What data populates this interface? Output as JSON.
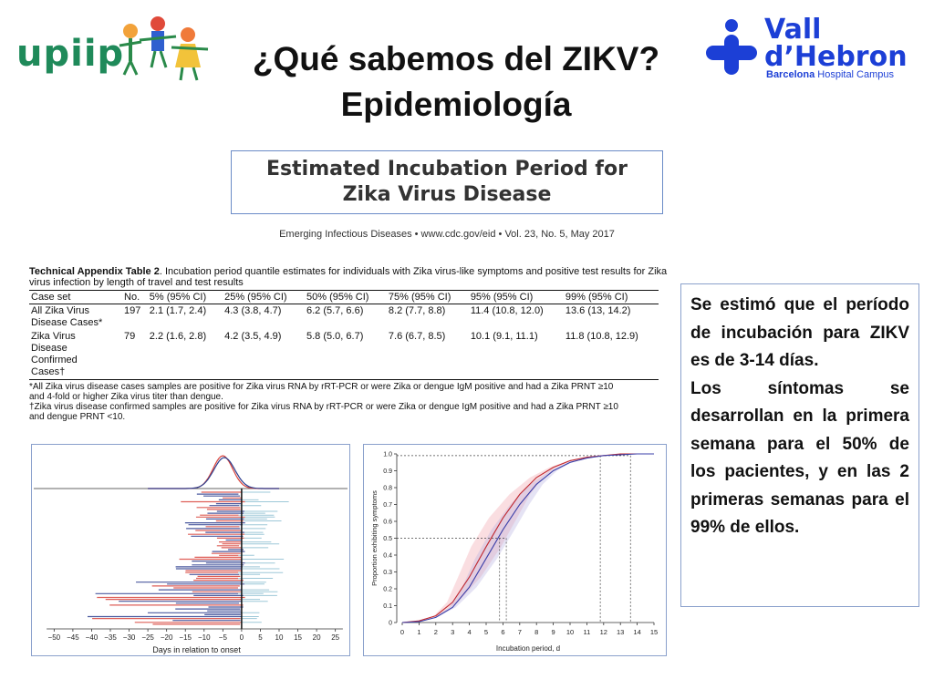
{
  "slide": {
    "title_line1": "¿Qué sabemos del ZIKV?",
    "title_line2": "Epidemiología"
  },
  "logos": {
    "left_text": "upiip",
    "right_title_line1": "Vall",
    "right_title_line2": "d’Hebron",
    "right_sub_bold": "Barcelona",
    "right_sub_rest": " Hospital Campus"
  },
  "article": {
    "title_line1": "Estimated Incubation Period for",
    "title_line2": "Zika Virus Disease",
    "journal": "Emerging Infectious Diseases • www.cdc.gov/eid • Vol. 23, No. 5, May 2017"
  },
  "table": {
    "caption_bold": "Technical Appendix Table 2",
    "caption_rest": ". Incubation period quantile estimates for individuals with Zika virus-like symptoms and positive test results for Zika virus infection by length of travel and test results",
    "headers": [
      "Case set",
      "No.",
      "5% (95% CI)",
      "25% (95% CI)",
      "50% (95% CI)",
      "75% (95% CI)",
      "95% (95% CI)",
      "99% (95% CI)"
    ],
    "row1": {
      "case_line1": "All Zika Virus",
      "case_line2": "Disease Cases*",
      "no": "197",
      "p5": "2.1 (1.7, 2.4)",
      "p25": "4.3 (3.8, 4.7)",
      "p50": "6.2 (5.7, 6.6)",
      "p75": "8.2 (7.7, 8.8)",
      "p95": "11.4 (10.8, 12.0)",
      "p99": "13.6 (13, 14.2)"
    },
    "row2": {
      "case_line1": "Zika Virus",
      "case_line2": "Disease",
      "case_line3": "Confirmed",
      "case_line4": "Cases†",
      "no": "79",
      "p5": "2.2 (1.6, 2.8)",
      "p25": "4.2 (3.5, 4.9)",
      "p50": "5.8 (5.0, 6.7)",
      "p75": "7.6 (6.7, 8.5)",
      "p95": "10.1 (9.1, 11.1)",
      "p99": "11.8 (10.8, 12.9)"
    },
    "footnote1_line1": "*All Zika virus disease cases samples are positive for Zika virus RNA by rRT-PCR or were Zika or dengue IgM positive and had a Zika PRNT ≥10",
    "footnote1_line2": "and 4-fold or higher Zika virus titer than dengue.",
    "footnote2_line1": "†Zika virus disease confirmed samples are positive for Zika virus RNA by rRT-PCR or were Zika or dengue IgM positive and had a Zika PRNT ≥10",
    "footnote2_line2": "and dengue PRNT <10."
  },
  "summary": {
    "para1": "Se estimó que el período de incubación para ZIKV es de 3-14 días.",
    "para2": "Los síntomas se desarrollan en la primera semana para el 50% de los pacientes, y en las 2 primeras semanas para el 99% de ellos."
  },
  "chart_data": [
    {
      "type": "line",
      "xlabel": "Days in relation to onset",
      "x_ticks": [
        "−50",
        "−45",
        "−40",
        "−35",
        "−30",
        "−25",
        "−20",
        "−15",
        "−10",
        "−5",
        "0",
        "5",
        "10",
        "15",
        "20",
        "25"
      ],
      "xlim": [
        -53,
        28
      ],
      "series_colors": [
        "#d9443c",
        "#2c3e8f"
      ]
    },
    {
      "type": "line",
      "xlabel": "Incubation period, d",
      "ylabel": "Proportion exhibiting symptoms",
      "x_ticks": [
        "0",
        "1",
        "2",
        "3",
        "4",
        "5",
        "6",
        "7",
        "8",
        "9",
        "10",
        "11",
        "12",
        "13",
        "14",
        "15"
      ],
      "y_ticks": [
        "0",
        "0.1",
        "0.2",
        "0.3",
        "0.4",
        "0.5",
        "0.6",
        "0.7",
        "0.8",
        "0.9",
        "1.0"
      ],
      "xlim": [
        0,
        15
      ],
      "ylim": [
        0,
        1
      ],
      "series": [
        {
          "color": "#c0282f",
          "x": [
            0,
            1,
            2,
            3,
            4,
            5,
            6,
            7,
            8,
            9,
            10,
            11,
            12,
            13,
            14,
            15
          ],
          "y": [
            0.0,
            0.01,
            0.04,
            0.12,
            0.27,
            0.45,
            0.62,
            0.76,
            0.86,
            0.92,
            0.96,
            0.98,
            0.99,
            1.0,
            1.0,
            1.0
          ]
        },
        {
          "color": "#3b3fa8",
          "x": [
            0,
            1,
            2,
            3,
            4,
            5,
            6,
            7,
            8,
            9,
            10,
            11,
            12,
            13,
            14,
            15
          ],
          "y": [
            0.0,
            0.005,
            0.03,
            0.09,
            0.21,
            0.38,
            0.55,
            0.7,
            0.82,
            0.9,
            0.95,
            0.975,
            0.99,
            0.995,
            1.0,
            1.0
          ]
        }
      ],
      "reference_lines": {
        "median_y": 0.5,
        "median_x": [
          5.8,
          6.2
        ],
        "p99_y": 0.99,
        "p99_x": [
          11.8,
          13.6
        ]
      }
    }
  ]
}
